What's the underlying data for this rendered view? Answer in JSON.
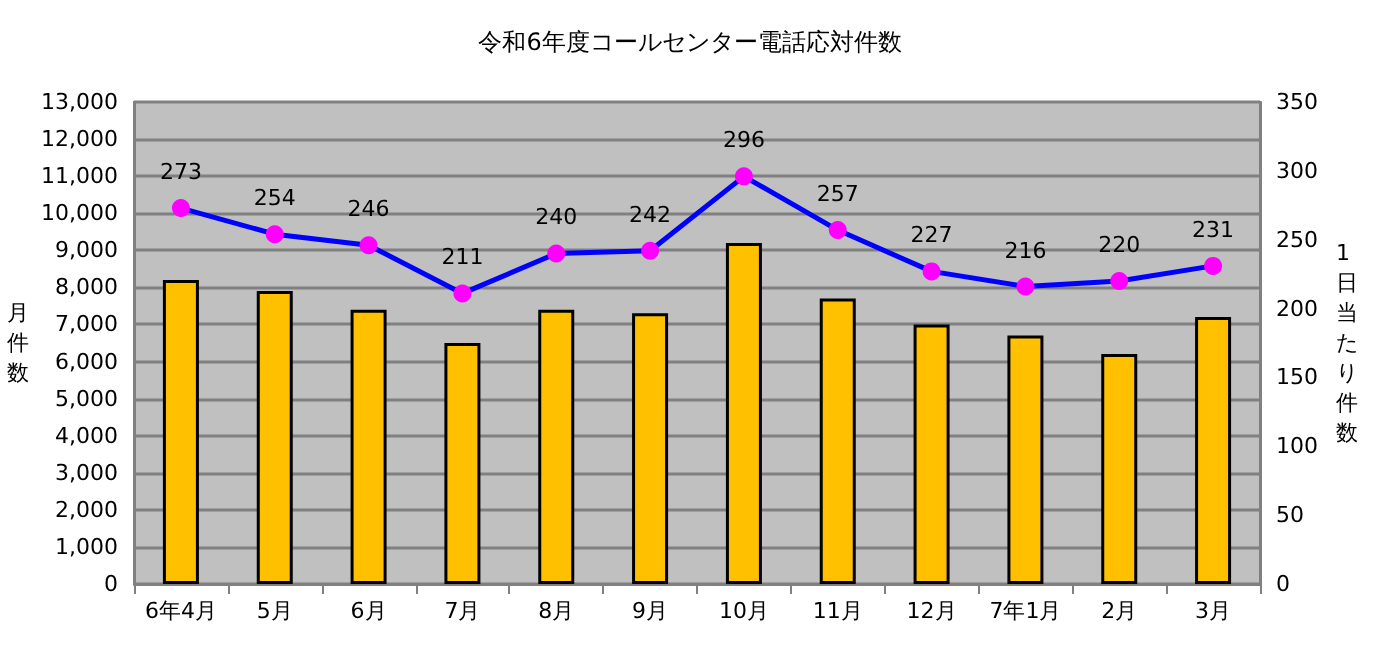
{
  "chart_data": {
    "type": "bar",
    "title": "令和6年度コールセンター電話応対件数",
    "ylabel": "月件数",
    "y2label": "1日当たり件数",
    "categories": [
      "6年4月",
      "5月",
      "6月",
      "7月",
      "8月",
      "9月",
      "10月",
      "11月",
      "12月",
      "7年1月",
      "2月",
      "3月"
    ],
    "series": [
      {
        "color": "#ffc000",
        "values": [
          8200,
          7900,
          7400,
          6500,
          7400,
          7300,
          9200,
          7700,
          7000,
          6700,
          6200,
          7200
        ]
      },
      {
        "type": "line",
        "axis": "y2",
        "color": "#0000ff",
        "marker": "circle",
        "values": [
          273,
          254,
          246,
          211,
          240,
          242,
          296,
          257,
          227,
          216,
          220,
          231
        ],
        "value_labels": [
          "273",
          "254",
          "246",
          "211",
          "240",
          "242",
          "296",
          "257",
          "227",
          "216",
          "220",
          "231"
        ]
      }
    ],
    "ylim": [
      0,
      13000
    ],
    "yticks": [
      0,
      {
        "value": 1000,
        "label": "1,000"
      },
      {
        "value": 2000,
        "label": "2,000"
      },
      {
        "value": 3000,
        "label": "3,000"
      },
      {
        "value": 4000,
        "label": "4,000"
      },
      {
        "value": 5000,
        "label": "5,000"
      },
      {
        "value": 6000,
        "label": "6,000"
      },
      {
        "value": 7000,
        "label": "7,000"
      },
      {
        "value": 8000,
        "label": "8,000"
      },
      {
        "value": 9000,
        "label": "9,000"
      },
      {
        "value": 10000,
        "label": "10,000"
      },
      {
        "value": 11000,
        "label": "11,000"
      },
      {
        "value": 12000,
        "label": "12,000"
      },
      {
        "value": 13000,
        "label": "13,000"
      }
    ],
    "y2lim": [
      0,
      350
    ],
    "y2ticks": [
      0,
      50,
      100,
      150,
      200,
      250,
      300,
      350
    ],
    "grid": "y"
  }
}
